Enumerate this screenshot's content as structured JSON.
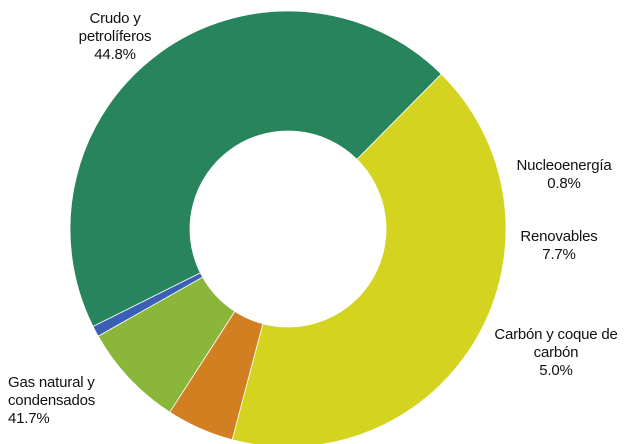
{
  "chart_data": {
    "type": "pie",
    "title": "",
    "donut": true,
    "categories": [
      "Crudo y petrolíferos",
      "Nucleoenergía",
      "Renovables",
      "Carbón y coque de carbón",
      "Gas natural y condensados"
    ],
    "values": [
      44.8,
      0.8,
      7.7,
      5.0,
      41.7
    ],
    "value_labels": [
      "44.8%",
      "0.8%",
      "7.7%",
      "5.0%",
      "41.7%"
    ],
    "colors": [
      "#27845c",
      "#3a5fb5",
      "#8ab63a",
      "#d27f22",
      "#d3d320"
    ],
    "start_angle_deg": 45.3,
    "direction": "counterclockwise",
    "labels": {
      "crudo": {
        "line1": "Crudo y",
        "line2": "petrolíferos",
        "value": "44.8%"
      },
      "nucleo": {
        "line1": "Nucleoenergía",
        "value": "0.8%"
      },
      "renovables": {
        "line1": "Renovables",
        "value": "7.7%"
      },
      "carbon": {
        "line1": "Carbón y coque de",
        "line2": "carbón",
        "value": "5.0%"
      },
      "gas": {
        "line1": "Gas natural y",
        "line2": "condensados",
        "value": "41.7%"
      }
    }
  }
}
